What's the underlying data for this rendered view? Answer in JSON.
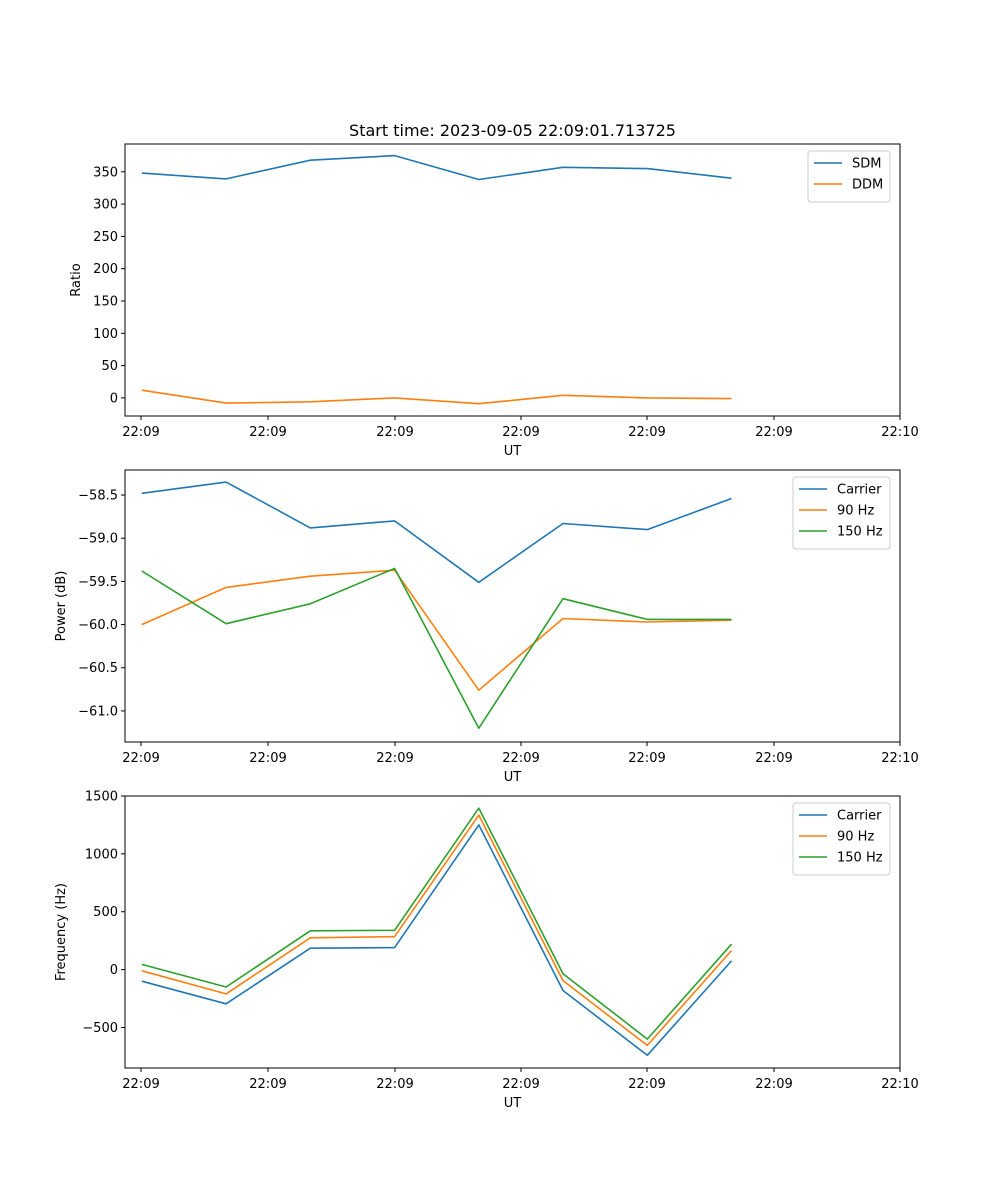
{
  "chart_data": [
    {
      "type": "line",
      "title": "Start time: 2023-09-05 22:09:01.713725",
      "xlabel": "UT",
      "ylabel": "Ratio",
      "xticks": [
        "22:09",
        "22:09",
        "22:09",
        "22:09",
        "22:09",
        "22:09",
        "22:10"
      ],
      "x": [
        1,
        2,
        3,
        4,
        5,
        6,
        7,
        8
      ],
      "xlim": [
        0.8,
        10.0
      ],
      "ylim": [
        -28,
        393
      ],
      "yticks": [
        0,
        50,
        100,
        150,
        200,
        250,
        300,
        350
      ],
      "legend": "top-right",
      "series": [
        {
          "name": "SDM",
          "color": "#1f77b4",
          "values": [
            348,
            339,
            368,
            375,
            338,
            357,
            355,
            340
          ]
        },
        {
          "name": "DDM",
          "color": "#ff7f0e",
          "values": [
            12,
            -8,
            -6,
            0,
            -9,
            4,
            0,
            -1
          ]
        }
      ]
    },
    {
      "type": "line",
      "title": "",
      "xlabel": "UT",
      "ylabel": "Power (dB)",
      "xticks": [
        "22:09",
        "22:09",
        "22:09",
        "22:09",
        "22:09",
        "22:09",
        "22:10"
      ],
      "x": [
        1,
        2,
        3,
        4,
        5,
        6,
        7,
        8
      ],
      "xlim": [
        0.8,
        10.0
      ],
      "ylim": [
        -61.36,
        -58.21
      ],
      "yticks": [
        -61.0,
        -60.5,
        -60.0,
        -59.5,
        -59.0,
        -58.5
      ],
      "yticklabels": [
        "−61.0",
        "−60.5",
        "−60.0",
        "−59.5",
        "−59.0",
        "−58.5"
      ],
      "legend": "top-right",
      "series": [
        {
          "name": "Carrier",
          "color": "#1f77b4",
          "values": [
            -58.48,
            -58.35,
            -58.88,
            -58.8,
            -59.51,
            -58.83,
            -58.9,
            -58.54
          ]
        },
        {
          "name": "90 Hz",
          "color": "#ff7f0e",
          "values": [
            -60.0,
            -59.57,
            -59.44,
            -59.37,
            -60.76,
            -59.93,
            -59.97,
            -59.95
          ]
        },
        {
          "name": "150 Hz",
          "color": "#2ca02c",
          "values": [
            -59.38,
            -59.99,
            -59.76,
            -59.35,
            -61.2,
            -59.7,
            -59.94,
            -59.94
          ]
        }
      ]
    },
    {
      "type": "line",
      "title": "",
      "xlabel": "UT",
      "ylabel": "Frequency (Hz)",
      "xticks": [
        "22:09",
        "22:09",
        "22:09",
        "22:09",
        "22:09",
        "22:09",
        "22:10"
      ],
      "x": [
        1,
        2,
        3,
        4,
        5,
        6,
        7,
        8
      ],
      "xlim": [
        0.8,
        10.0
      ],
      "ylim": [
        -850,
        1500
      ],
      "yticks": [
        -500,
        0,
        500,
        1000,
        1500
      ],
      "yticklabels": [
        "−500",
        "0",
        "500",
        "1000",
        "1500"
      ],
      "legend": "top-right",
      "series": [
        {
          "name": "Carrier",
          "color": "#1f77b4",
          "values": [
            -100,
            -295,
            185,
            190,
            1250,
            -180,
            -740,
            75
          ]
        },
        {
          "name": "90 Hz",
          "color": "#ff7f0e",
          "values": [
            -10,
            -210,
            275,
            285,
            1335,
            -95,
            -655,
            165
          ]
        },
        {
          "name": "150 Hz",
          "color": "#2ca02c",
          "values": [
            45,
            -150,
            335,
            340,
            1395,
            -35,
            -600,
            220
          ]
        }
      ]
    }
  ]
}
